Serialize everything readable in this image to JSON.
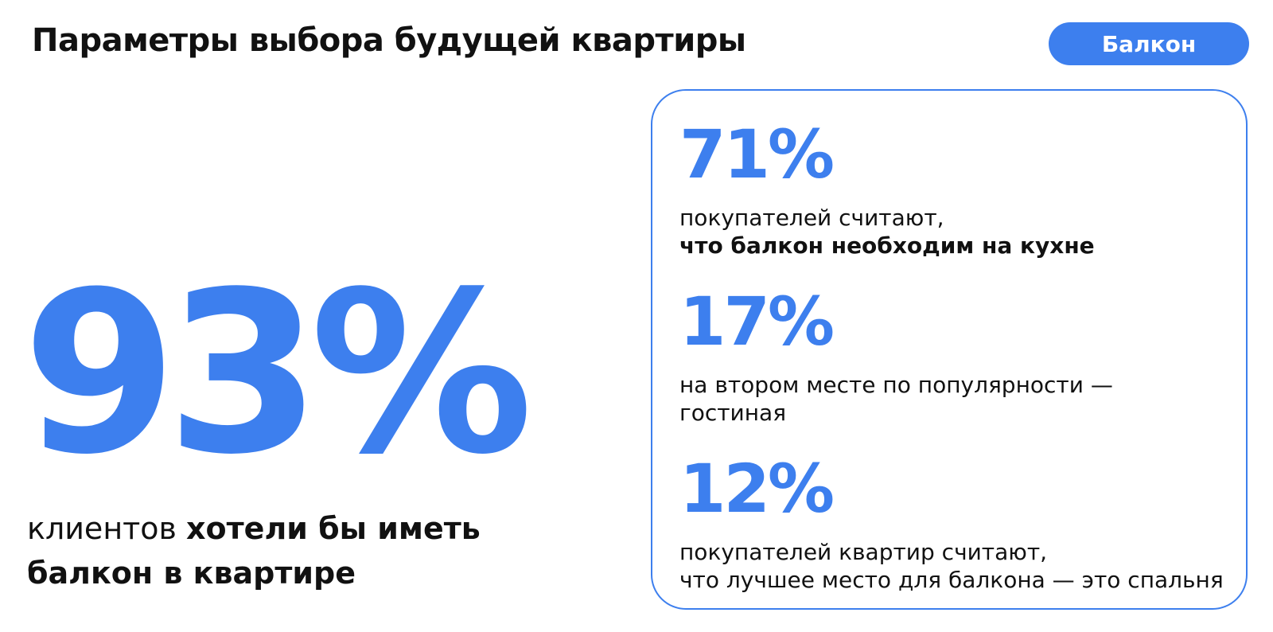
{
  "header": {
    "title": "Параметры выбора будущей квартиры",
    "tag": "Балкон"
  },
  "colors": {
    "accent": "#3d7fee",
    "text": "#111111"
  },
  "hero": {
    "value": "93%",
    "caption_regular": "клиентов ",
    "caption_bold_line1": "хотели бы иметь",
    "caption_bold_line2": "балкон в квартире"
  },
  "stats": [
    {
      "value": "71%",
      "line1": "покупателей считают,",
      "line2": "что балкон необходим на кухне"
    },
    {
      "value": "17%",
      "line1": "на втором месте по популярности —",
      "line2": "гостиная"
    },
    {
      "value": "12%",
      "line1": "покупателей квартир считают,",
      "line2": "что лучшее место для балкона — это спальня"
    }
  ]
}
